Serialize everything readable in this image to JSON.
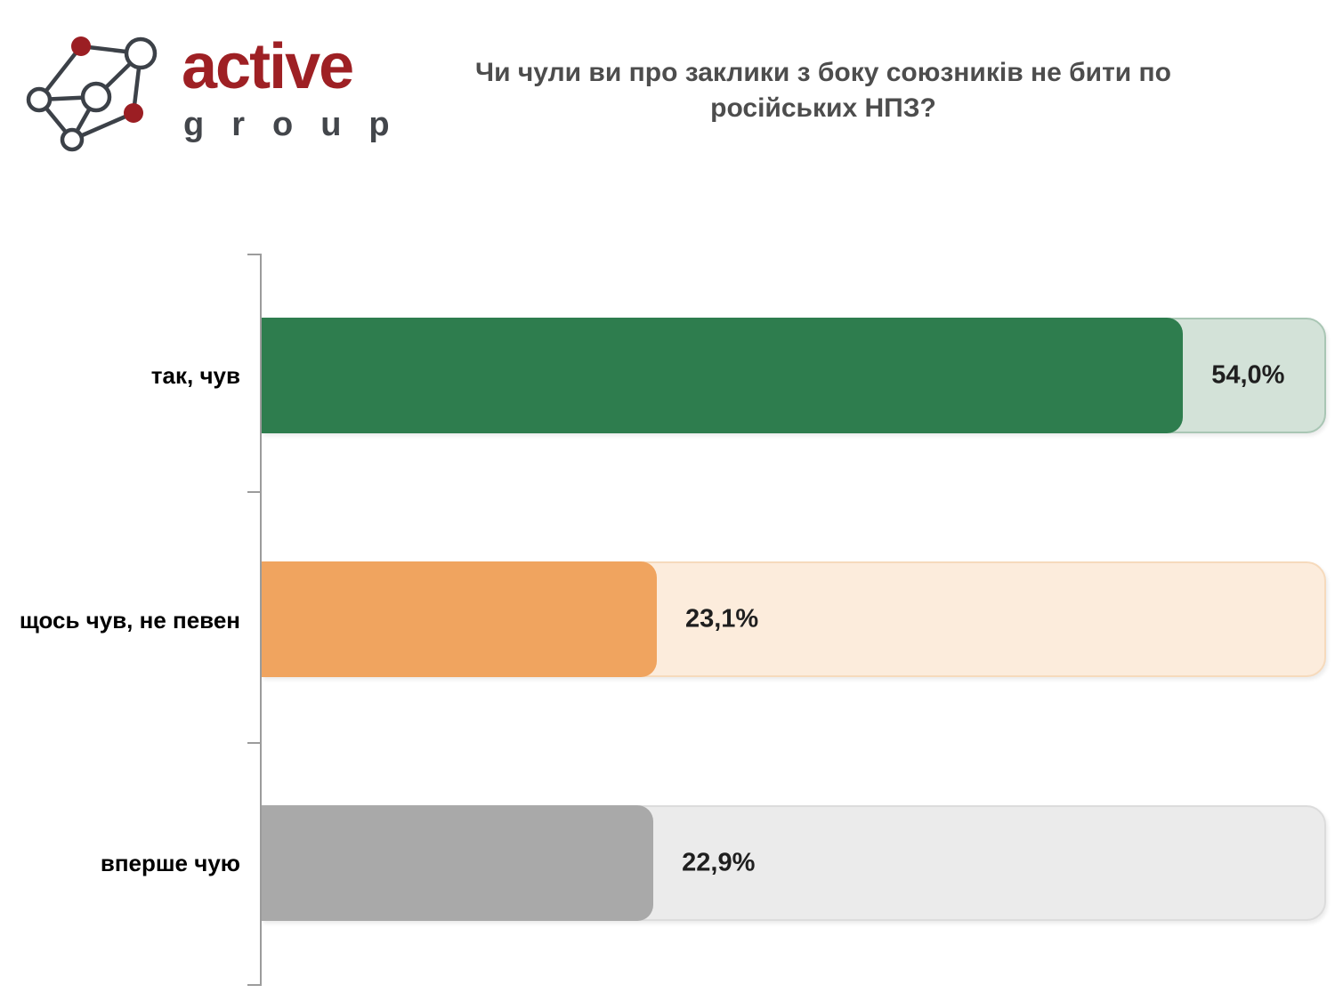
{
  "logo": {
    "brand_name": "active",
    "brand_subtitle": "group",
    "brand_color": "#9E2024",
    "subtitle_color": "#43464B",
    "icon": "network-graph-icon"
  },
  "title": {
    "text": "Чи чули ви про заклики з боку союзників не бити по російських НПЗ?",
    "color": "#4D4D4D"
  },
  "chart_data": {
    "type": "bar",
    "orientation": "horizontal",
    "title": "Чи чули ви про заклики з боку союзників не бити по російських НПЗ?",
    "categories": [
      "так, чув",
      "щось чув, не певен",
      "вперше чую"
    ],
    "values": [
      54.0,
      23.1,
      22.9
    ],
    "value_labels": [
      "54,0%",
      "23,1%",
      "22,9%"
    ],
    "xlabel": "",
    "ylabel": "",
    "xlim": [
      0,
      62.3
    ],
    "grid": false,
    "legend": false,
    "bar_colors": [
      "#2E7D4E",
      "#F0A45F",
      "#A9A9A9"
    ],
    "track_colors": [
      "#D3E2D8",
      "#FCECDC",
      "#EBEBEB"
    ],
    "track_border_colors": [
      "#A9C6B4",
      "#F6DABC",
      "#DCDCDC"
    ],
    "axis_color": "#9C9C9C"
  }
}
